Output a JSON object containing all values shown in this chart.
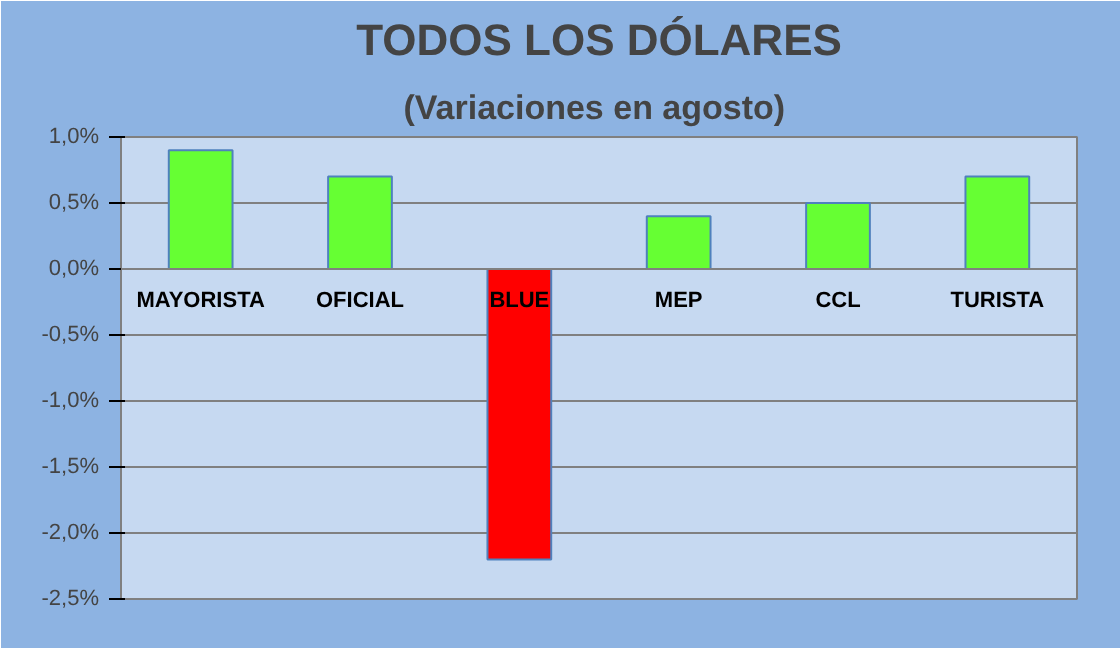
{
  "chart_data": {
    "type": "bar",
    "title": "TODOS LOS DÓLARES",
    "subtitle": "(Variaciones  en agosto)",
    "categories": [
      "MAYORISTA",
      "OFICIAL",
      "BLUE",
      "MEP",
      "CCL",
      "TURISTA"
    ],
    "values": [
      0.9,
      0.7,
      -2.2,
      0.4,
      0.5,
      0.7
    ],
    "colors": [
      "#66ff33",
      "#66ff33",
      "#ff0000",
      "#66ff33",
      "#66ff33",
      "#66ff33"
    ],
    "ylim": [
      -2.5,
      1.0
    ],
    "yticks": [
      {
        "value": -2.5,
        "label": "-2,5%"
      },
      {
        "value": -2.0,
        "label": "-2,0%"
      },
      {
        "value": -1.5,
        "label": "-1,5%"
      },
      {
        "value": -1.0,
        "label": "-1,0%"
      },
      {
        "value": -0.5,
        "label": "-0,5%"
      },
      {
        "value": 0.0,
        "label": "0,0%"
      },
      {
        "value": 0.5,
        "label": "0,5%"
      },
      {
        "value": 1.0,
        "label": "1,0%"
      }
    ],
    "grid": "y"
  }
}
